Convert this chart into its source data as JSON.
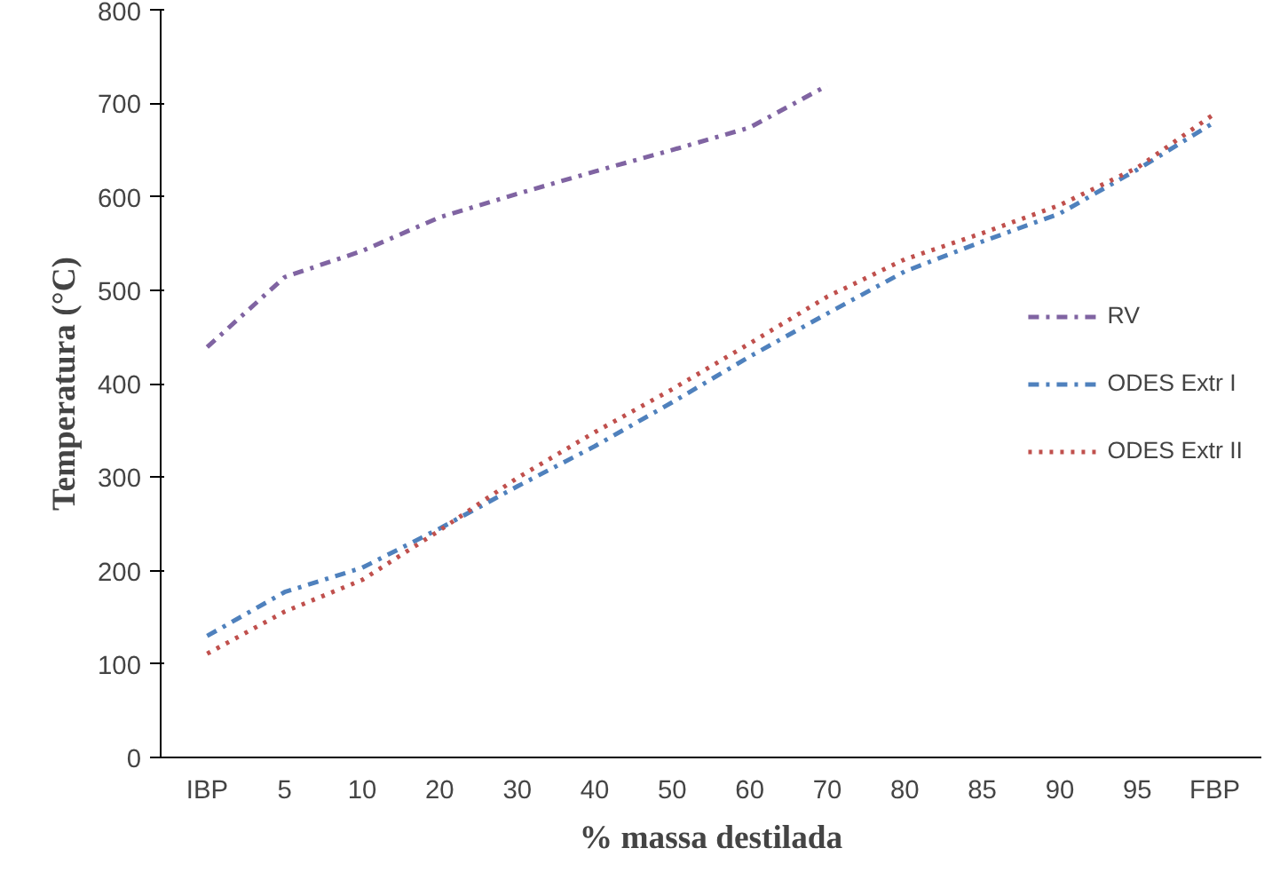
{
  "chart_data": {
    "type": "line",
    "xlabel": "% massa destilada",
    "ylabel": "Temperatura (°C)",
    "categories": [
      "IBP",
      "5",
      "10",
      "20",
      "30",
      "40",
      "50",
      "60",
      "70",
      "80",
      "85",
      "90",
      "95",
      "FBP"
    ],
    "ylim": [
      0,
      800
    ],
    "yticks": [
      0,
      100,
      200,
      300,
      400,
      500,
      600,
      700,
      800
    ],
    "grid": false,
    "legend": "right",
    "marker": "none",
    "series": [
      {
        "name": "RV",
        "color": "#8064a2",
        "line_style": "dashdot",
        "values": [
          439,
          514,
          542,
          578,
          603,
          627,
          650,
          674,
          719,
          null,
          null,
          null,
          null,
          null
        ]
      },
      {
        "name": "ODES Extr I",
        "color": "#4f81bd",
        "line_style": "dashdot",
        "values": [
          130,
          177,
          203,
          245,
          290,
          333,
          380,
          429,
          475,
          520,
          552,
          582,
          629,
          680
        ]
      },
      {
        "name": "ODES Extr II",
        "color": "#c0504d",
        "line_style": "dotted",
        "values": [
          111,
          156,
          190,
          243,
          299,
          348,
          394,
          443,
          493,
          533,
          561,
          591,
          631,
          689
        ]
      }
    ]
  }
}
